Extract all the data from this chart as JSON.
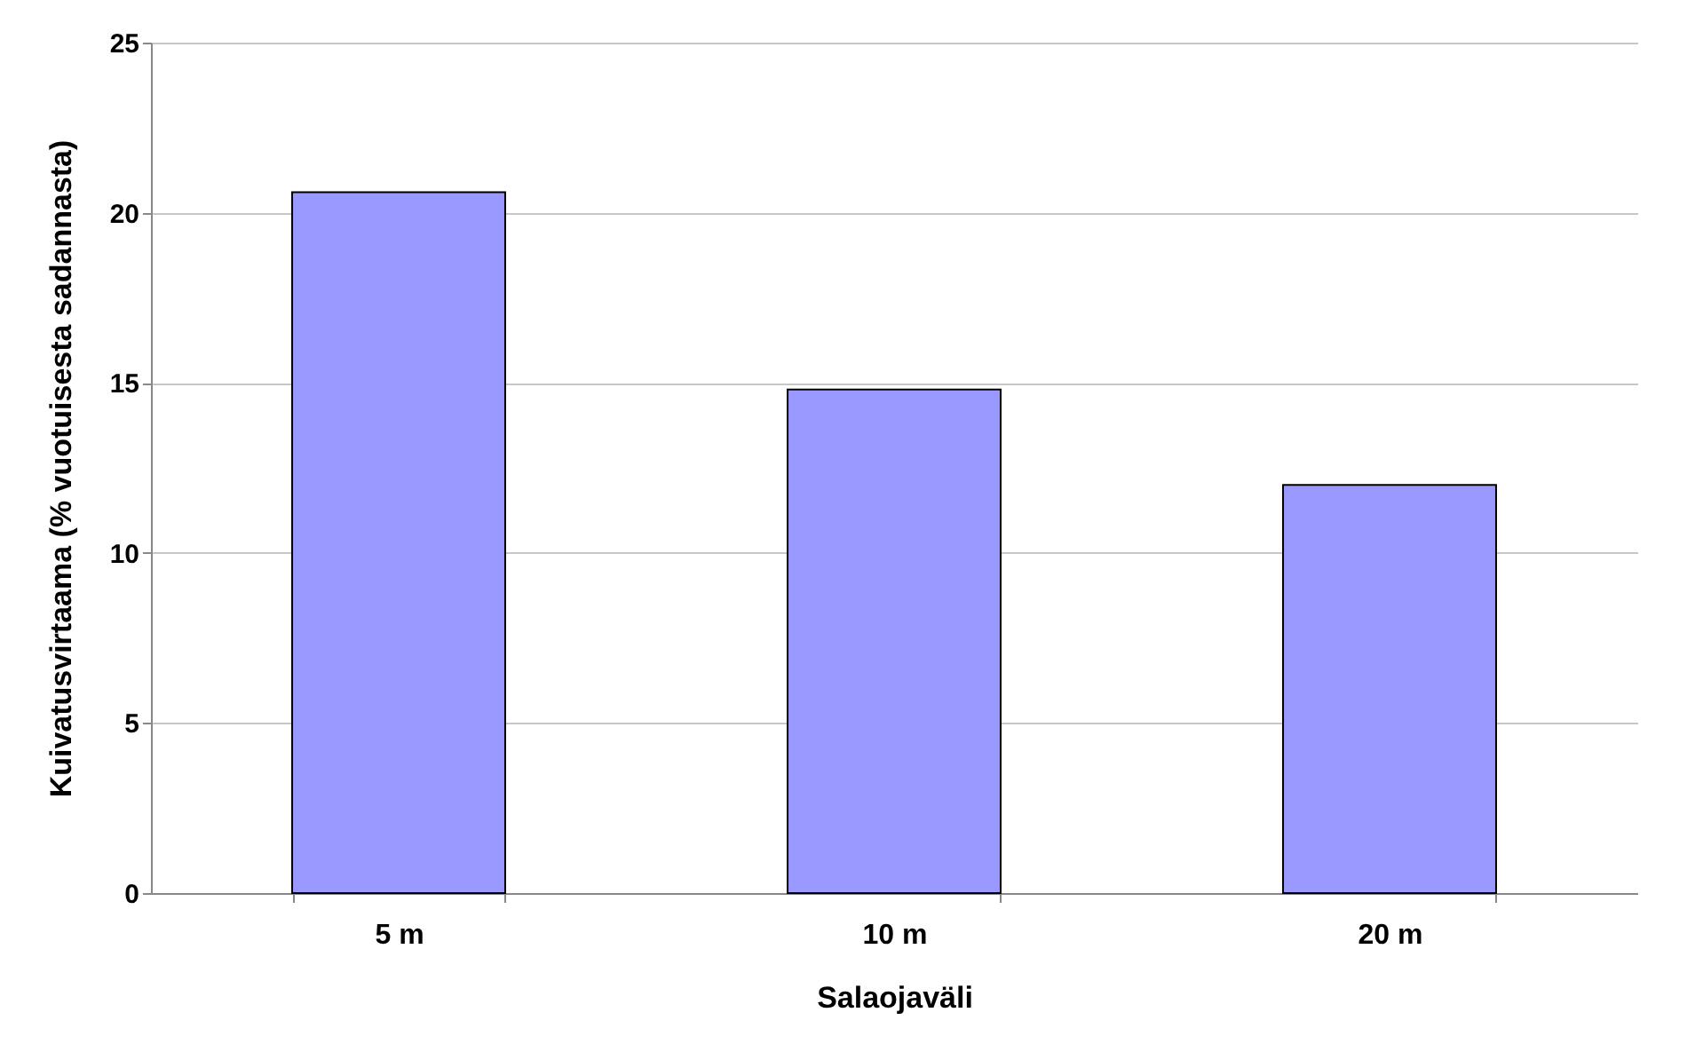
{
  "chart_data": {
    "type": "bar",
    "xlabel": "Salaojaväli",
    "ylabel": "Kuivatusvirtaama (% vuotuisesta sadannasta)",
    "categories": [
      "5 m",
      "10 m",
      "20 m"
    ],
    "values": [
      20.6,
      14.8,
      12.0
    ],
    "color": "#9999ff",
    "ylim": [
      0,
      25
    ],
    "yticks": [
      0,
      5,
      10,
      15,
      20,
      25
    ],
    "grid": "y"
  }
}
